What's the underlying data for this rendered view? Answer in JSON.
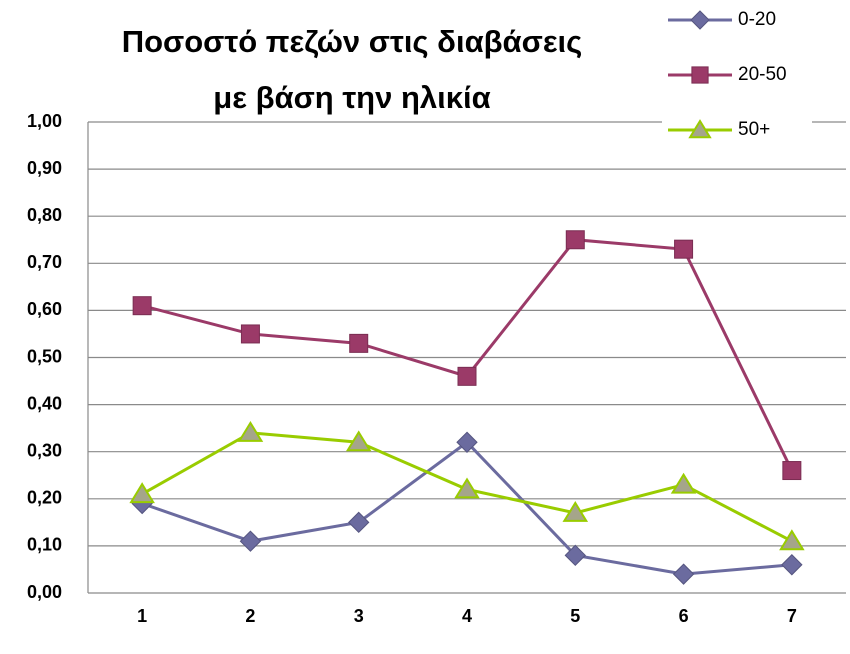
{
  "chart_data": {
    "type": "line",
    "title": [
      "Ποσοστό πεζών στις διαβάσεις",
      "με βάση την ηλικία"
    ],
    "categories": [
      "1",
      "2",
      "3",
      "4",
      "5",
      "6",
      "7"
    ],
    "series": [
      {
        "name": "0-20",
        "color": "#6b6b9f",
        "marker": "diamond",
        "values": [
          0.19,
          0.11,
          0.15,
          0.32,
          0.08,
          0.04,
          0.06
        ]
      },
      {
        "name": "20-50",
        "color": "#9b3a68",
        "marker": "square",
        "values": [
          0.61,
          0.55,
          0.53,
          0.46,
          0.75,
          0.73,
          0.26
        ]
      },
      {
        "name": "50+",
        "color": "#99cc00",
        "marker": "triangle",
        "values": [
          0.21,
          0.34,
          0.32,
          0.22,
          0.17,
          0.23,
          0.11
        ]
      }
    ],
    "ylim": [
      0,
      1
    ],
    "yticks": [
      {
        "value": 0,
        "label": "0,00"
      },
      {
        "value": 0.1,
        "label": "0,10"
      },
      {
        "value": 0.2,
        "label": "0,20"
      },
      {
        "value": 0.3,
        "label": "0,30"
      },
      {
        "value": 0.4,
        "label": "0,40"
      },
      {
        "value": 0.5,
        "label": "0,50"
      },
      {
        "value": 0.6,
        "label": "0,60"
      },
      {
        "value": 0.7,
        "label": "0,70"
      },
      {
        "value": 0.8,
        "label": "0,80"
      },
      {
        "value": 0.9,
        "label": "0,90"
      },
      {
        "value": 1,
        "label": "1,00"
      }
    ],
    "grid": true,
    "legend": "top-right"
  }
}
